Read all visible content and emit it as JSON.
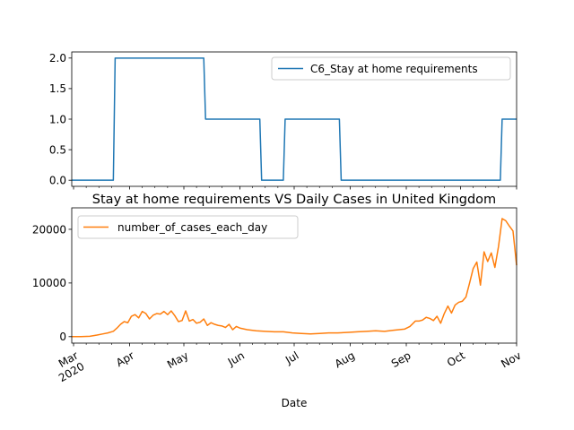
{
  "chart_data": [
    {
      "type": "line",
      "title": "",
      "xlabel": "",
      "ylabel": "",
      "ylim": [
        -0.1,
        2.1
      ],
      "yticks": [
        0.0,
        0.5,
        1.0,
        1.5,
        2.0
      ],
      "ytick_labels": [
        "0.0",
        "0.5",
        "1.0",
        "1.5",
        "2.0"
      ],
      "grid": false,
      "legend_position": "top-right",
      "series": [
        {
          "name": "C6_Stay at home requirements",
          "color": "#1f77b4",
          "x": [
            "2020-02-29",
            "2020-03-23",
            "2020-03-24",
            "2020-05-12",
            "2020-05-13",
            "2020-06-12",
            "2020-06-13",
            "2020-06-25",
            "2020-06-26",
            "2020-07-26",
            "2020-07-27",
            "2020-10-23",
            "2020-10-24",
            "2020-11-01"
          ],
          "values": [
            0,
            0,
            2,
            2,
            1,
            1,
            0,
            0,
            1,
            1,
            0,
            0,
            1,
            1
          ]
        }
      ]
    },
    {
      "type": "line",
      "title": "Stay at home requirements VS Daily Cases in United Kingdom",
      "xlabel": "Date",
      "ylabel": "",
      "ylim": [
        -1200,
        24000
      ],
      "yticks": [
        0,
        10000,
        20000
      ],
      "ytick_labels": [
        "0",
        "10000",
        "20000"
      ],
      "grid": false,
      "legend_position": "top-left",
      "x_tick_dates": [
        "2020-03-01",
        "2020-04-01",
        "2020-05-01",
        "2020-06-01",
        "2020-07-01",
        "2020-08-01",
        "2020-09-01",
        "2020-10-01",
        "2020-11-01"
      ],
      "x_tick_labels": [
        "Mar\n2020",
        "Apr",
        "May",
        "Jun",
        "Jul",
        "Aug",
        "Sep",
        "Oct",
        "Nov"
      ],
      "series": [
        {
          "name": "number_of_cases_each_day",
          "color": "#ff7f0e",
          "x": [
            "2020-02-29",
            "2020-03-05",
            "2020-03-10",
            "2020-03-14",
            "2020-03-17",
            "2020-03-20",
            "2020-03-23",
            "2020-03-25",
            "2020-03-27",
            "2020-03-29",
            "2020-03-31",
            "2020-04-02",
            "2020-04-04",
            "2020-04-06",
            "2020-04-08",
            "2020-04-10",
            "2020-04-12",
            "2020-04-14",
            "2020-04-16",
            "2020-04-18",
            "2020-04-20",
            "2020-04-22",
            "2020-04-24",
            "2020-04-26",
            "2020-04-28",
            "2020-04-30",
            "2020-05-02",
            "2020-05-04",
            "2020-05-06",
            "2020-05-08",
            "2020-05-10",
            "2020-05-12",
            "2020-05-14",
            "2020-05-16",
            "2020-05-18",
            "2020-05-20",
            "2020-05-22",
            "2020-05-24",
            "2020-05-26",
            "2020-05-28",
            "2020-05-30",
            "2020-06-01",
            "2020-06-05",
            "2020-06-10",
            "2020-06-15",
            "2020-06-20",
            "2020-06-25",
            "2020-06-30",
            "2020-07-05",
            "2020-07-10",
            "2020-07-15",
            "2020-07-20",
            "2020-07-25",
            "2020-07-31",
            "2020-08-05",
            "2020-08-10",
            "2020-08-15",
            "2020-08-20",
            "2020-08-25",
            "2020-08-31",
            "2020-09-03",
            "2020-09-06",
            "2020-09-08",
            "2020-09-10",
            "2020-09-12",
            "2020-09-14",
            "2020-09-16",
            "2020-09-18",
            "2020-09-20",
            "2020-09-22",
            "2020-09-24",
            "2020-09-26",
            "2020-09-28",
            "2020-09-30",
            "2020-10-02",
            "2020-10-04",
            "2020-10-06",
            "2020-10-08",
            "2020-10-10",
            "2020-10-12",
            "2020-10-14",
            "2020-10-16",
            "2020-10-18",
            "2020-10-20",
            "2020-10-22",
            "2020-10-24",
            "2020-10-26",
            "2020-10-28",
            "2020-10-30",
            "2020-11-01"
          ],
          "values": [
            0,
            0,
            80,
            300,
            500,
            700,
            1000,
            1600,
            2300,
            2800,
            2600,
            3800,
            4100,
            3500,
            4700,
            4300,
            3300,
            4000,
            4300,
            4200,
            4700,
            4100,
            4800,
            3900,
            2800,
            3000,
            4800,
            2900,
            3200,
            2500,
            2700,
            3300,
            2100,
            2600,
            2300,
            2100,
            2000,
            1700,
            2300,
            1300,
            1900,
            1600,
            1300,
            1100,
            1000,
            900,
            900,
            700,
            600,
            500,
            600,
            700,
            700,
            800,
            900,
            1000,
            1100,
            1000,
            1200,
            1400,
            1900,
            2900,
            2900,
            3100,
            3600,
            3400,
            3000,
            3800,
            2500,
            4300,
            5700,
            4400,
            5900,
            6400,
            6600,
            7400,
            10000,
            12700,
            13900,
            9600,
            15800,
            14000,
            15600,
            12900,
            16800,
            22000,
            21600,
            20600,
            19700,
            13300
          ]
        }
      ]
    }
  ]
}
